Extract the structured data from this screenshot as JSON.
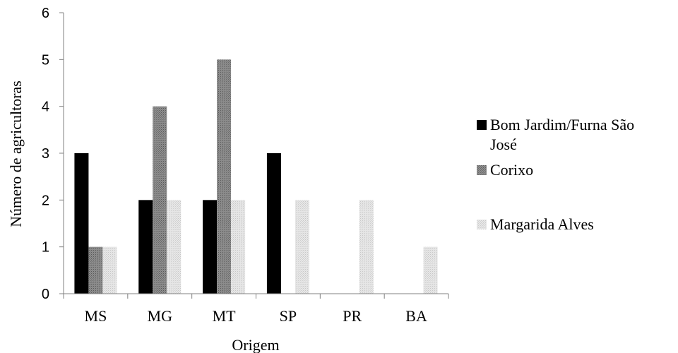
{
  "chart_data": {
    "type": "bar",
    "categories": [
      "MS",
      "MG",
      "MT",
      "SP",
      "PR",
      "BA"
    ],
    "series": [
      {
        "name": "Bom Jardim/Furna São José",
        "name_lines": [
          "Bom Jardim/Furna São",
          "José"
        ],
        "values": [
          3,
          2,
          2,
          3,
          0,
          0
        ],
        "color": "#000000",
        "pattern": "solid"
      },
      {
        "name": "Corixo",
        "name_lines": [
          "Corixo"
        ],
        "values": [
          1,
          4,
          5,
          0,
          0,
          0
        ],
        "color": "#7f7f7f",
        "pattern": "dark-dots"
      },
      {
        "name": "Margarida Alves",
        "name_lines": [
          "Margarida Alves"
        ],
        "values": [
          1,
          2,
          2,
          2,
          2,
          1
        ],
        "color": "#d9d9d9",
        "pattern": "light-dots"
      }
    ],
    "xlabel": "Origem",
    "ylabel": "Número de agricultoras",
    "ylim": [
      0,
      6
    ],
    "yticks": [
      0,
      1,
      2,
      3,
      4,
      5,
      6
    ],
    "grid": false,
    "legend_position": "right"
  }
}
